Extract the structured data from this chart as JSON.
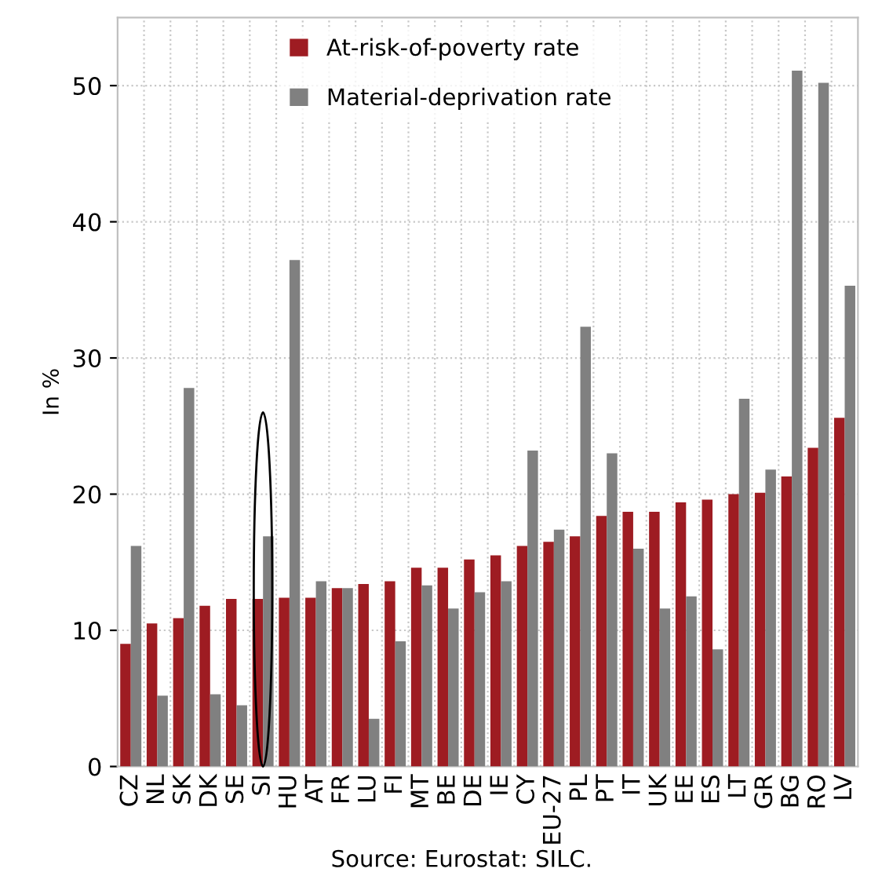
{
  "chart_data": {
    "type": "bar",
    "ylabel": "In %",
    "categories": [
      "CZ",
      "NL",
      "SK",
      "DK",
      "SE",
      "SI",
      "HU",
      "AT",
      "FR",
      "LU",
      "FI",
      "MT",
      "BE",
      "DE",
      "IE",
      "CY",
      "EU-27",
      "PL",
      "PT",
      "IT",
      "UK",
      "EE",
      "ES",
      "LT",
      "GR",
      "BG",
      "RO",
      "LV"
    ],
    "series": [
      {
        "name": "At-risk-of-poverty rate",
        "color": "#9e1c22",
        "values": [
          9.0,
          10.5,
          10.9,
          11.8,
          12.3,
          12.3,
          12.4,
          12.4,
          13.1,
          13.4,
          13.6,
          14.6,
          14.6,
          15.2,
          15.5,
          16.2,
          16.5,
          16.9,
          18.4,
          18.7,
          18.7,
          19.4,
          19.6,
          20.0,
          20.1,
          21.3,
          23.4,
          25.6
        ]
      },
      {
        "name": "Material-deprivation rate",
        "color": "#808080",
        "values": [
          16.2,
          5.2,
          27.8,
          5.3,
          4.5,
          16.9,
          37.2,
          13.6,
          13.1,
          3.5,
          9.2,
          13.3,
          11.6,
          12.8,
          13.6,
          23.2,
          17.4,
          32.3,
          23.0,
          16.0,
          11.6,
          12.5,
          8.6,
          27.0,
          21.8,
          51.1,
          50.2,
          35.3
        ]
      }
    ],
    "ylim": [
      0,
      55
    ],
    "yticks": [
      0,
      10,
      20,
      30,
      40,
      50
    ],
    "grid": true,
    "legend": "top",
    "annotations": [
      "Source: Eurostat: SILC."
    ]
  }
}
